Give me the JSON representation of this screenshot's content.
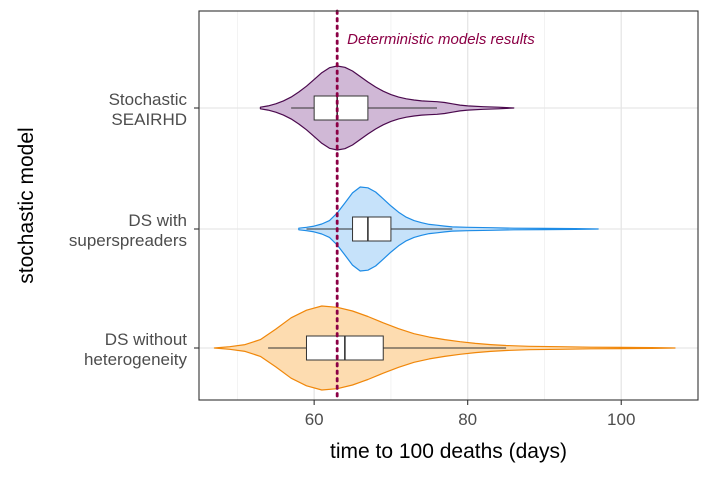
{
  "chart_data": {
    "type": "violin",
    "orientation": "horizontal",
    "xlabel": "time to 100 deaths (days)",
    "ylabel": "stochastic model",
    "xlim": [
      45,
      110
    ],
    "xticks": [
      60,
      80,
      100
    ],
    "minor_gridlines": [
      50,
      70,
      90
    ],
    "grid": true,
    "reference_line": {
      "x": 63,
      "label": "Deterministic models results",
      "color": "#8b0045",
      "style": "dotted"
    },
    "series": [
      {
        "name_lines": [
          "Stochastic",
          "SEAIRHD"
        ],
        "fill": "#d0b8d6",
        "stroke": "#4b0a4e",
        "box": {
          "whisker_low": 57,
          "q1": 60,
          "median": 63,
          "q3": 67,
          "whisker_high": 76
        },
        "range": [
          53,
          86
        ],
        "density": [
          [
            53,
            0.02
          ],
          [
            54,
            0.05
          ],
          [
            55,
            0.1
          ],
          [
            56,
            0.17
          ],
          [
            57,
            0.26
          ],
          [
            58,
            0.38
          ],
          [
            59,
            0.52
          ],
          [
            60,
            0.68
          ],
          [
            61,
            0.84
          ],
          [
            62,
            0.96
          ],
          [
            63,
            1.0
          ],
          [
            64,
            0.97
          ],
          [
            65,
            0.88
          ],
          [
            66,
            0.75
          ],
          [
            67,
            0.62
          ],
          [
            68,
            0.5
          ],
          [
            69,
            0.4
          ],
          [
            70,
            0.32
          ],
          [
            71,
            0.26
          ],
          [
            72,
            0.22
          ],
          [
            73,
            0.19
          ],
          [
            74,
            0.17
          ],
          [
            75,
            0.16
          ],
          [
            76,
            0.15
          ],
          [
            77,
            0.13
          ],
          [
            78,
            0.1
          ],
          [
            79,
            0.07
          ],
          [
            80,
            0.05
          ],
          [
            82,
            0.03
          ],
          [
            84,
            0.02
          ],
          [
            86,
            0.0
          ]
        ]
      },
      {
        "name_lines": [
          "DS with",
          "superspreaders"
        ],
        "fill": "#c6e2fa",
        "stroke": "#1e8ce6",
        "box": {
          "whisker_low": 59,
          "q1": 65,
          "median": 67,
          "q3": 70,
          "whisker_high": 78
        },
        "range": [
          58,
          97
        ],
        "density": [
          [
            58,
            0.02
          ],
          [
            59,
            0.04
          ],
          [
            60,
            0.07
          ],
          [
            61,
            0.12
          ],
          [
            62,
            0.2
          ],
          [
            63,
            0.38
          ],
          [
            64,
            0.62
          ],
          [
            65,
            0.86
          ],
          [
            66,
            1.0
          ],
          [
            67,
            0.98
          ],
          [
            68,
            0.88
          ],
          [
            69,
            0.72
          ],
          [
            70,
            0.55
          ],
          [
            71,
            0.4
          ],
          [
            72,
            0.28
          ],
          [
            73,
            0.2
          ],
          [
            74,
            0.15
          ],
          [
            75,
            0.11
          ],
          [
            76,
            0.09
          ],
          [
            77,
            0.07
          ],
          [
            78,
            0.05
          ],
          [
            80,
            0.04
          ],
          [
            83,
            0.03
          ],
          [
            86,
            0.02
          ],
          [
            90,
            0.015
          ],
          [
            94,
            0.01
          ],
          [
            97,
            0.0
          ]
        ]
      },
      {
        "name_lines": [
          "DS without",
          "heterogeneity"
        ],
        "fill": "#fddcb0",
        "stroke": "#f0870a",
        "box": {
          "whisker_low": 54,
          "q1": 59,
          "median": 64,
          "q3": 69,
          "whisker_high": 85
        },
        "range": [
          47,
          107
        ],
        "density": [
          [
            47,
            0.0
          ],
          [
            49,
            0.03
          ],
          [
            51,
            0.08
          ],
          [
            53,
            0.2
          ],
          [
            55,
            0.45
          ],
          [
            57,
            0.72
          ],
          [
            59,
            0.9
          ],
          [
            61,
            1.0
          ],
          [
            63,
            0.97
          ],
          [
            65,
            0.88
          ],
          [
            67,
            0.75
          ],
          [
            69,
            0.6
          ],
          [
            71,
            0.46
          ],
          [
            73,
            0.34
          ],
          [
            75,
            0.26
          ],
          [
            77,
            0.2
          ],
          [
            79,
            0.15
          ],
          [
            81,
            0.11
          ],
          [
            83,
            0.08
          ],
          [
            85,
            0.06
          ],
          [
            88,
            0.04
          ],
          [
            92,
            0.03
          ],
          [
            96,
            0.02
          ],
          [
            100,
            0.015
          ],
          [
            104,
            0.01
          ],
          [
            107,
            0.0
          ]
        ]
      }
    ]
  }
}
